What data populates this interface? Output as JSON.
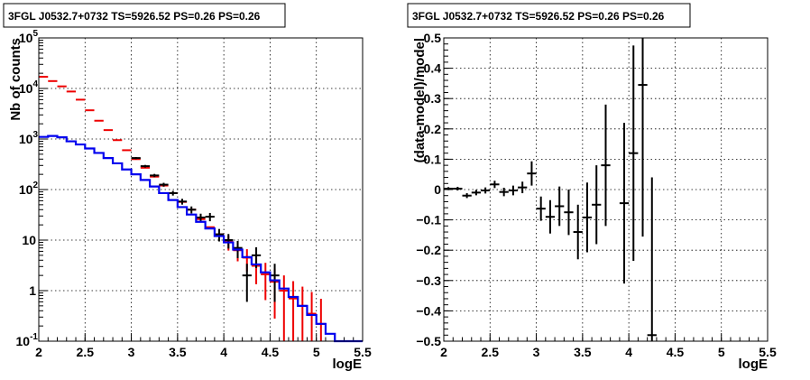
{
  "chart_data": [
    {
      "type": "histogram",
      "title": "3FGL J0532.7+0732 TS=5926.52 PS=0.26 PS=0.26",
      "xlabel": "logE",
      "ylabel": "Nb of counts",
      "xlim": [
        2,
        5.5
      ],
      "ylim": [
        0.1,
        100000
      ],
      "yscale": "log",
      "grid": true,
      "x_ticks": [
        "2",
        "2.5",
        "3",
        "3.5",
        "4",
        "4.5",
        "5",
        "5.5"
      ],
      "y_ticks": [
        {
          "value": 0.1,
          "mant": "10",
          "exp": "-1"
        },
        {
          "value": 1,
          "mant": "1",
          "exp": ""
        },
        {
          "value": 10,
          "mant": "10",
          "exp": ""
        },
        {
          "value": 100,
          "mant": "10",
          "exp": "2"
        },
        {
          "value": 1000,
          "mant": "10",
          "exp": "3"
        },
        {
          "value": 10000,
          "mant": "10",
          "exp": "4"
        },
        {
          "value": 100000,
          "mant": "10",
          "exp": "5"
        }
      ],
      "bin_width": 0.1,
      "series": [
        {
          "color": "#0000ee",
          "style": "step",
          "x": [
            2.05,
            2.15,
            2.25,
            2.35,
            2.45,
            2.55,
            2.65,
            2.75,
            2.85,
            2.95,
            3.05,
            3.15,
            3.25,
            3.35,
            3.45,
            3.55,
            3.65,
            3.75,
            3.85,
            3.95,
            4.05,
            4.15,
            4.25,
            4.35,
            4.45,
            4.55,
            4.65,
            4.75,
            4.85,
            4.95,
            5.05,
            5.15,
            5.25,
            5.35,
            5.45
          ],
          "values": [
            1100,
            1150,
            1080,
            900,
            780,
            650,
            530,
            420,
            330,
            250,
            200,
            155,
            115,
            85,
            62,
            45,
            32,
            23,
            17,
            12,
            9,
            6.5,
            4.6,
            3.3,
            2.3,
            1.6,
            1.1,
            0.75,
            0.5,
            0.33,
            0.22,
            0.14,
            0.1,
            0.1,
            0.1
          ]
        },
        {
          "color": "#ee0000",
          "style": "errorbar",
          "x": [
            2.05,
            2.15,
            2.25,
            2.35,
            2.45,
            2.55,
            2.65,
            2.75,
            2.85,
            2.95,
            3.05,
            3.15,
            3.25,
            3.35,
            3.45,
            3.55,
            3.65,
            3.75,
            3.85,
            3.95,
            4.05,
            4.15,
            4.25,
            4.35,
            4.45,
            4.55,
            4.65,
            4.75,
            4.85,
            4.95,
            5.05
          ],
          "values": [
            17000,
            14000,
            11000,
            8700,
            6000,
            3700,
            2300,
            1500,
            950,
            600,
            400,
            270,
            180,
            120,
            85,
            57,
            40,
            26,
            18,
            13,
            9.2,
            6.3,
            4.5,
            3.1,
            2.1,
            1.5,
            1.0,
            0.7,
            0.5,
            0.35,
            0.22
          ],
          "err_low": [
            null,
            null,
            null,
            null,
            null,
            null,
            null,
            null,
            null,
            null,
            null,
            null,
            null,
            null,
            null,
            null,
            null,
            null,
            null,
            null,
            3.0,
            2.5,
            2.1,
            1.76,
            1.45,
            1.22,
            1.0,
            0.7,
            0.5,
            0.35,
            0.22
          ],
          "err_high": [
            null,
            null,
            null,
            null,
            null,
            null,
            null,
            null,
            null,
            null,
            null,
            null,
            null,
            null,
            null,
            null,
            null,
            null,
            null,
            null,
            3.0,
            2.5,
            2.1,
            1.76,
            1.45,
            1.22,
            1.0,
            0.84,
            0.7,
            0.59,
            0.47
          ]
        },
        {
          "color": "#000000",
          "style": "errorbar",
          "x": [
            3.05,
            3.15,
            3.25,
            3.35,
            3.45,
            3.55,
            3.65,
            3.75,
            3.85,
            3.95,
            4.05,
            4.15,
            4.25,
            4.35,
            4.55
          ],
          "values": [
            420,
            290,
            190,
            125,
            85,
            58,
            40,
            28,
            29,
            13,
            10,
            7,
            2,
            5,
            2
          ],
          "err_low": [
            20,
            17,
            14,
            11,
            9,
            7.6,
            6.3,
            5.3,
            5.4,
            3.6,
            3.2,
            2.6,
            1.4,
            2.2,
            1.4
          ],
          "err_high": [
            20,
            17,
            14,
            11,
            9,
            7.6,
            6.3,
            5.3,
            5.4,
            3.6,
            3.2,
            2.6,
            1.4,
            2.2,
            1.4
          ]
        }
      ]
    },
    {
      "type": "scatter",
      "title": "3FGL J0532.7+0732 TS=5926.52 PS=0.26 PS=0.26",
      "xlabel": "logE",
      "ylabel": "(data-model)/model",
      "xlim": [
        2,
        5.5
      ],
      "ylim": [
        -0.5,
        0.5
      ],
      "grid": true,
      "x_ticks": [
        "2",
        "2.5",
        "3",
        "3.5",
        "4",
        "4.5",
        "5",
        "5.5"
      ],
      "y_ticks": [
        "0.5",
        "0.4",
        "0.3",
        "0.2",
        "0.1",
        "0",
        "−0.1",
        "−0.2",
        "−0.3",
        "−0.4",
        "−0.5"
      ],
      "bin_width": 0.1,
      "series": [
        {
          "color": "#000000",
          "style": "errorbar",
          "x": [
            2.05,
            2.15,
            2.25,
            2.35,
            2.45,
            2.55,
            2.65,
            2.75,
            2.85,
            2.95,
            3.05,
            3.15,
            3.25,
            3.35,
            3.45,
            3.55,
            3.65,
            3.75,
            3.95,
            4.05,
            4.15,
            4.25
          ],
          "y": [
            0.003,
            0.003,
            -0.02,
            -0.01,
            -0.003,
            0.017,
            -0.008,
            -0.003,
            0.007,
            0.053,
            -0.063,
            -0.09,
            -0.055,
            -0.075,
            -0.14,
            -0.092,
            -0.05,
            0.08,
            -0.045,
            0.12,
            0.345,
            -0.48
          ],
          "err": [
            0.005,
            0.006,
            0.008,
            0.009,
            0.01,
            0.012,
            0.014,
            0.016,
            0.019,
            0.04,
            0.04,
            0.055,
            0.065,
            0.075,
            0.09,
            0.115,
            0.13,
            0.2,
            0.265,
            0.355,
            0.5,
            0.52
          ]
        }
      ]
    }
  ]
}
